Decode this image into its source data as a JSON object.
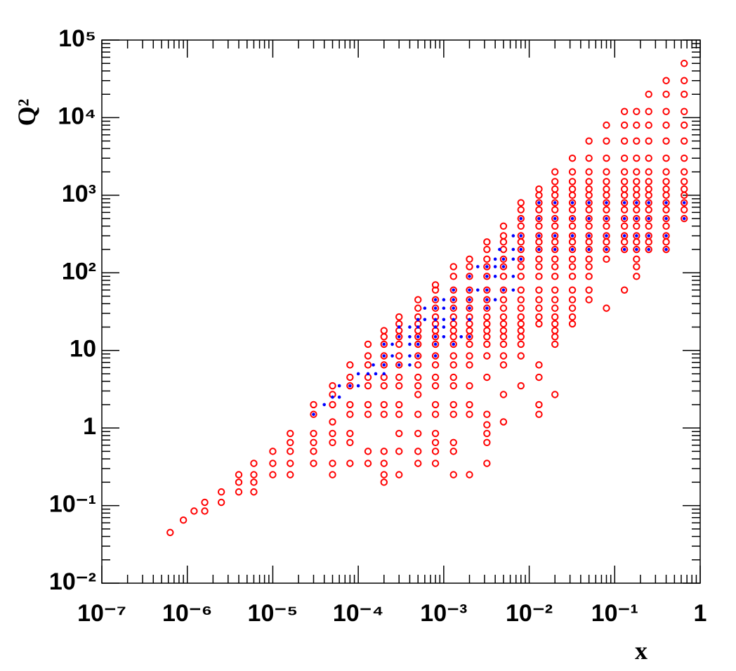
{
  "chart_data": {
    "type": "scatter",
    "x_label": "x",
    "y_label": "Q²",
    "xscale": "log",
    "yscale": "log",
    "xlim": [
      1e-07,
      1
    ],
    "ylim": [
      0.01,
      100000
    ],
    "xticks": [
      {
        "value": 1e-07,
        "label": "10⁻⁷"
      },
      {
        "value": 1e-06,
        "label": "10⁻⁶"
      },
      {
        "value": 1e-05,
        "label": "10⁻⁵"
      },
      {
        "value": 0.0001,
        "label": "10⁻⁴"
      },
      {
        "value": 0.001,
        "label": "10⁻³"
      },
      {
        "value": 0.01,
        "label": "10⁻²"
      },
      {
        "value": 0.1,
        "label": "10⁻¹"
      },
      1
    ],
    "yticks": [
      {
        "value": 0.01,
        "label": "10⁻²"
      },
      {
        "value": 0.1,
        "label": "10⁻¹"
      },
      1,
      10,
      {
        "value": 100,
        "label": "10²"
      },
      {
        "value": 1000,
        "label": "10³"
      },
      {
        "value": 10000,
        "label": "10⁴"
      },
      {
        "value": 100000,
        "label": "10⁵"
      }
    ],
    "series": [
      {
        "color": "#ff0000",
        "marker": "open-circle",
        "x": [
          0.65,
          0.65,
          0.65,
          0.65,
          0.65,
          0.65,
          0.65,
          0.65,
          0.65,
          0.65,
          0.65,
          0.65,
          0.65,
          0.65,
          0.4,
          0.4,
          0.4,
          0.4,
          0.4,
          0.4,
          0.4,
          0.4,
          0.4,
          0.4,
          0.4,
          0.4,
          0.4,
          0.4,
          0.4,
          0.4,
          0.4,
          0.25,
          0.25,
          0.25,
          0.25,
          0.25,
          0.25,
          0.25,
          0.25,
          0.25,
          0.25,
          0.25,
          0.25,
          0.25,
          0.25,
          0.25,
          0.25,
          0.18,
          0.18,
          0.18,
          0.18,
          0.18,
          0.18,
          0.18,
          0.18,
          0.18,
          0.18,
          0.18,
          0.18,
          0.18,
          0.18,
          0.18,
          0.18,
          0.18,
          0.18,
          0.13,
          0.13,
          0.13,
          0.13,
          0.13,
          0.13,
          0.13,
          0.13,
          0.13,
          0.13,
          0.13,
          0.13,
          0.13,
          0.13,
          0.13,
          0.13,
          0.08,
          0.08,
          0.08,
          0.08,
          0.08,
          0.08,
          0.08,
          0.08,
          0.08,
          0.08,
          0.08,
          0.08,
          0.08,
          0.08,
          0.08,
          0.08,
          0.05,
          0.05,
          0.05,
          0.05,
          0.05,
          0.05,
          0.05,
          0.05,
          0.05,
          0.05,
          0.05,
          0.05,
          0.05,
          0.05,
          0.05,
          0.05,
          0.05,
          0.05,
          0.032,
          0.032,
          0.032,
          0.032,
          0.032,
          0.032,
          0.032,
          0.032,
          0.032,
          0.032,
          0.032,
          0.032,
          0.032,
          0.032,
          0.032,
          0.032,
          0.032,
          0.032,
          0.032,
          0.032,
          0.02,
          0.02,
          0.02,
          0.02,
          0.02,
          0.02,
          0.02,
          0.02,
          0.02,
          0.02,
          0.02,
          0.02,
          0.02,
          0.02,
          0.02,
          0.02,
          0.02,
          0.02,
          0.02,
          0.02,
          0.02,
          0.02,
          0.02,
          0.013,
          0.013,
          0.013,
          0.013,
          0.013,
          0.013,
          0.013,
          0.013,
          0.013,
          0.013,
          0.013,
          0.013,
          0.013,
          0.013,
          0.013,
          0.013,
          0.013,
          0.013,
          0.013,
          0.013,
          0.013,
          0.008,
          0.008,
          0.008,
          0.008,
          0.008,
          0.008,
          0.008,
          0.008,
          0.008,
          0.008,
          0.008,
          0.008,
          0.008,
          0.008,
          0.008,
          0.008,
          0.008,
          0.008,
          0.008,
          0.008,
          0.005,
          0.005,
          0.005,
          0.005,
          0.005,
          0.005,
          0.005,
          0.005,
          0.005,
          0.005,
          0.005,
          0.005,
          0.005,
          0.005,
          0.005,
          0.005,
          0.005,
          0.005,
          0.005,
          0.0032,
          0.0032,
          0.0032,
          0.0032,
          0.0032,
          0.0032,
          0.0032,
          0.0032,
          0.0032,
          0.0032,
          0.0032,
          0.0032,
          0.0032,
          0.0032,
          0.0032,
          0.0032,
          0.0032,
          0.0032,
          0.0032,
          0.0032,
          0.002,
          0.002,
          0.002,
          0.002,
          0.002,
          0.002,
          0.002,
          0.002,
          0.002,
          0.002,
          0.002,
          0.002,
          0.002,
          0.002,
          0.002,
          0.002,
          0.002,
          0.0013,
          0.0013,
          0.0013,
          0.0013,
          0.0013,
          0.0013,
          0.0013,
          0.0013,
          0.0013,
          0.0013,
          0.0013,
          0.0013,
          0.0013,
          0.0013,
          0.0013,
          0.0013,
          0.0013,
          0.0013,
          0.0013,
          0.0008,
          0.0008,
          0.0008,
          0.0008,
          0.0008,
          0.0008,
          0.0008,
          0.0008,
          0.0008,
          0.0008,
          0.0008,
          0.0008,
          0.0008,
          0.0008,
          0.0008,
          0.0008,
          0.0008,
          0.0008,
          0.0008,
          0.0005,
          0.0005,
          0.0005,
          0.0005,
          0.0005,
          0.0005,
          0.0005,
          0.0005,
          0.0005,
          0.0005,
          0.0005,
          0.0005,
          0.0005,
          0.0005,
          0.0005,
          0.0005,
          0.0003,
          0.0003,
          0.0003,
          0.0003,
          0.0003,
          0.0003,
          0.0003,
          0.0003,
          0.0003,
          0.0003,
          0.0003,
          0.0003,
          0.0003,
          0.0003,
          0.0002,
          0.0002,
          0.0002,
          0.0002,
          0.0002,
          0.0002,
          0.0002,
          0.0002,
          0.0002,
          0.0002,
          0.0002,
          0.0002,
          0.0002,
          0.00013,
          0.00013,
          0.00013,
          0.00013,
          0.00013,
          0.00013,
          0.00013,
          0.00013,
          0.00013,
          8e-05,
          8e-05,
          8e-05,
          8e-05,
          8e-05,
          8e-05,
          8e-05,
          8e-05,
          5e-05,
          5e-05,
          5e-05,
          5e-05,
          5e-05,
          5e-05,
          5e-05,
          5e-05,
          3e-05,
          3e-05,
          3e-05,
          3e-05,
          3e-05,
          3e-05,
          1.6e-05,
          1.6e-05,
          1.6e-05,
          1.6e-05,
          1.6e-05,
          1e-05,
          1e-05,
          1e-05,
          6e-06,
          6e-06,
          6e-06,
          6e-06,
          4e-06,
          4e-06,
          4e-06,
          2.5e-06,
          2.5e-06,
          1.6e-06,
          1.6e-06,
          1.2e-06,
          9e-07,
          6.3e-07
        ],
        "values": [
          500,
          650,
          800,
          1000,
          1200,
          1500,
          2000,
          3000,
          5000,
          8000,
          12000,
          20000,
          30000,
          50000,
          200,
          250,
          300,
          400,
          500,
          650,
          800,
          1000,
          1200,
          1500,
          2000,
          3000,
          5000,
          8000,
          12000,
          20000,
          30000,
          200,
          250,
          300,
          400,
          500,
          650,
          800,
          1000,
          1200,
          1500,
          2000,
          3000,
          5000,
          8000,
          12000,
          20000,
          90,
          120,
          150,
          200,
          250,
          300,
          400,
          500,
          650,
          800,
          1000,
          1200,
          1500,
          2000,
          3000,
          5000,
          8000,
          12000,
          60,
          200,
          250,
          300,
          400,
          500,
          650,
          800,
          1000,
          1200,
          1500,
          2000,
          3000,
          5000,
          8000,
          12000,
          35,
          150,
          200,
          250,
          300,
          400,
          500,
          650,
          800,
          1000,
          1200,
          1500,
          2000,
          3000,
          5000,
          8000,
          45,
          60,
          90,
          120,
          150,
          200,
          250,
          300,
          400,
          500,
          650,
          800,
          1000,
          1200,
          1500,
          2000,
          3000,
          5000,
          22,
          27,
          35,
          45,
          60,
          90,
          120,
          150,
          200,
          250,
          300,
          400,
          500,
          650,
          800,
          1000,
          1200,
          1500,
          2000,
          3000,
          2.7,
          12,
          15,
          18,
          22,
          27,
          35,
          45,
          60,
          90,
          120,
          150,
          200,
          250,
          300,
          400,
          500,
          650,
          800,
          1000,
          1200,
          1500,
          2000,
          1.5,
          2,
          4.5,
          6.5,
          22,
          27,
          35,
          45,
          60,
          90,
          120,
          150,
          200,
          250,
          300,
          400,
          500,
          650,
          800,
          1000,
          1200,
          3.5,
          8.5,
          12,
          15,
          18,
          22,
          27,
          35,
          45,
          60,
          90,
          120,
          150,
          200,
          250,
          300,
          400,
          500,
          650,
          800,
          1.2,
          2.7,
          6.5,
          8.5,
          12,
          15,
          18,
          22,
          27,
          35,
          45,
          60,
          90,
          120,
          150,
          200,
          250,
          300,
          400,
          0.35,
          0.65,
          0.85,
          1.1,
          1.5,
          4.5,
          8.5,
          12,
          15,
          18,
          22,
          27,
          35,
          45,
          60,
          90,
          120,
          150,
          200,
          250,
          0.25,
          1.5,
          2,
          3.5,
          6.5,
          8.5,
          12,
          15,
          18,
          22,
          27,
          35,
          45,
          60,
          90,
          120,
          150,
          0.25,
          0.5,
          0.65,
          1.5,
          2,
          3.5,
          4.5,
          6.5,
          8.5,
          12,
          15,
          18,
          22,
          27,
          35,
          45,
          60,
          90,
          120,
          0.35,
          0.5,
          0.65,
          0.85,
          1.5,
          2,
          3.5,
          4.5,
          6.5,
          8.5,
          12,
          15,
          18,
          22,
          27,
          35,
          45,
          60,
          70,
          0.35,
          0.5,
          0.85,
          1.5,
          2.7,
          3.5,
          4.5,
          6.5,
          8.5,
          12,
          15,
          18,
          22,
          27,
          35,
          45,
          0.25,
          0.5,
          0.85,
          1.5,
          2,
          3.5,
          4.5,
          6.5,
          8.5,
          12,
          15,
          18,
          22,
          27,
          0.2,
          0.25,
          0.35,
          0.5,
          1.5,
          2,
          3.5,
          4.5,
          6.5,
          8.5,
          12,
          15,
          18,
          0.35,
          0.5,
          1.5,
          2,
          3.5,
          4.5,
          6.5,
          8.5,
          12,
          0.35,
          0.65,
          0.85,
          1.5,
          2,
          3.5,
          4.5,
          6.5,
          0.25,
          0.35,
          0.65,
          0.85,
          1.2,
          2,
          2.7,
          3.5,
          0.35,
          0.5,
          0.65,
          0.85,
          1.5,
          2,
          0.25,
          0.35,
          0.5,
          0.65,
          0.85,
          0.25,
          0.35,
          0.5,
          0.15,
          0.2,
          0.25,
          0.35,
          0.15,
          0.2,
          0.25,
          0.11,
          0.15,
          0.085,
          0.11,
          0.085,
          0.065,
          0.045
        ]
      },
      {
        "color": "#0000ff",
        "marker": "dot",
        "x": [
          0.013,
          0.02,
          0.032,
          0.05,
          0.08,
          0.13,
          0.18,
          0.25,
          0.4,
          0.65,
          0.008,
          0.013,
          0.02,
          0.032,
          0.05,
          0.08,
          0.13,
          0.18,
          0.25,
          0.4,
          0.65,
          0.0065,
          0.008,
          0.013,
          0.02,
          0.032,
          0.05,
          0.08,
          0.13,
          0.18,
          0.25,
          0.4,
          0.0045,
          0.0065,
          0.008,
          0.013,
          0.02,
          0.032,
          0.05,
          0.08,
          0.13,
          0.18,
          0.25,
          0.4,
          0.004,
          0.005,
          0.0065,
          0.008,
          0.0025,
          0.0032,
          0.004,
          0.005,
          0.002,
          0.0032,
          0.004,
          0.0065,
          0.0013,
          0.002,
          0.0025,
          0.0032,
          0.005,
          0.0065,
          0.0008,
          0.001,
          0.0013,
          0.002,
          0.0032,
          0.004,
          0.0006,
          0.0008,
          0.001,
          0.0013,
          0.002,
          0.0032,
          0.0005,
          0.0006,
          0.0008,
          0.001,
          0.0013,
          0.002,
          0.0003,
          0.0004,
          0.0005,
          0.0008,
          0.001,
          0.0003,
          0.0004,
          0.0005,
          0.0008,
          0.001,
          0.0016,
          0.002,
          0.0002,
          0.00025,
          0.0004,
          0.0005,
          0.0008,
          0.0013,
          0.0002,
          0.00025,
          0.0004,
          0.0005,
          0.0008,
          0.00015,
          0.0002,
          0.0003,
          0.0004,
          0.0001,
          0.00013,
          0.00016,
          0.0002,
          6e-05,
          8e-05,
          0.0001,
          5e-05,
          6e-05,
          4e-05,
          3e-05
        ],
        "values": [
          800,
          800,
          800,
          800,
          800,
          800,
          800,
          800,
          800,
          800,
          500,
          500,
          500,
          500,
          500,
          500,
          500,
          500,
          500,
          500,
          500,
          300,
          300,
          300,
          300,
          300,
          300,
          300,
          300,
          300,
          300,
          300,
          200,
          200,
          200,
          200,
          200,
          200,
          200,
          200,
          200,
          200,
          200,
          200,
          150,
          150,
          150,
          150,
          120,
          120,
          120,
          120,
          90,
          90,
          90,
          90,
          60,
          60,
          60,
          60,
          60,
          60,
          45,
          45,
          45,
          45,
          45,
          45,
          35,
          35,
          35,
          35,
          35,
          35,
          25,
          25,
          25,
          25,
          25,
          25,
          20,
          20,
          20,
          20,
          20,
          15,
          15,
          15,
          15,
          15,
          15,
          15,
          12,
          12,
          12,
          12,
          12,
          12,
          8.5,
          8.5,
          8.5,
          8.5,
          8.5,
          6.5,
          6.5,
          6.5,
          6.5,
          5,
          5,
          5,
          5,
          3.5,
          3.5,
          3.5,
          2.5,
          2.5,
          2,
          1.5
        ]
      }
    ]
  }
}
